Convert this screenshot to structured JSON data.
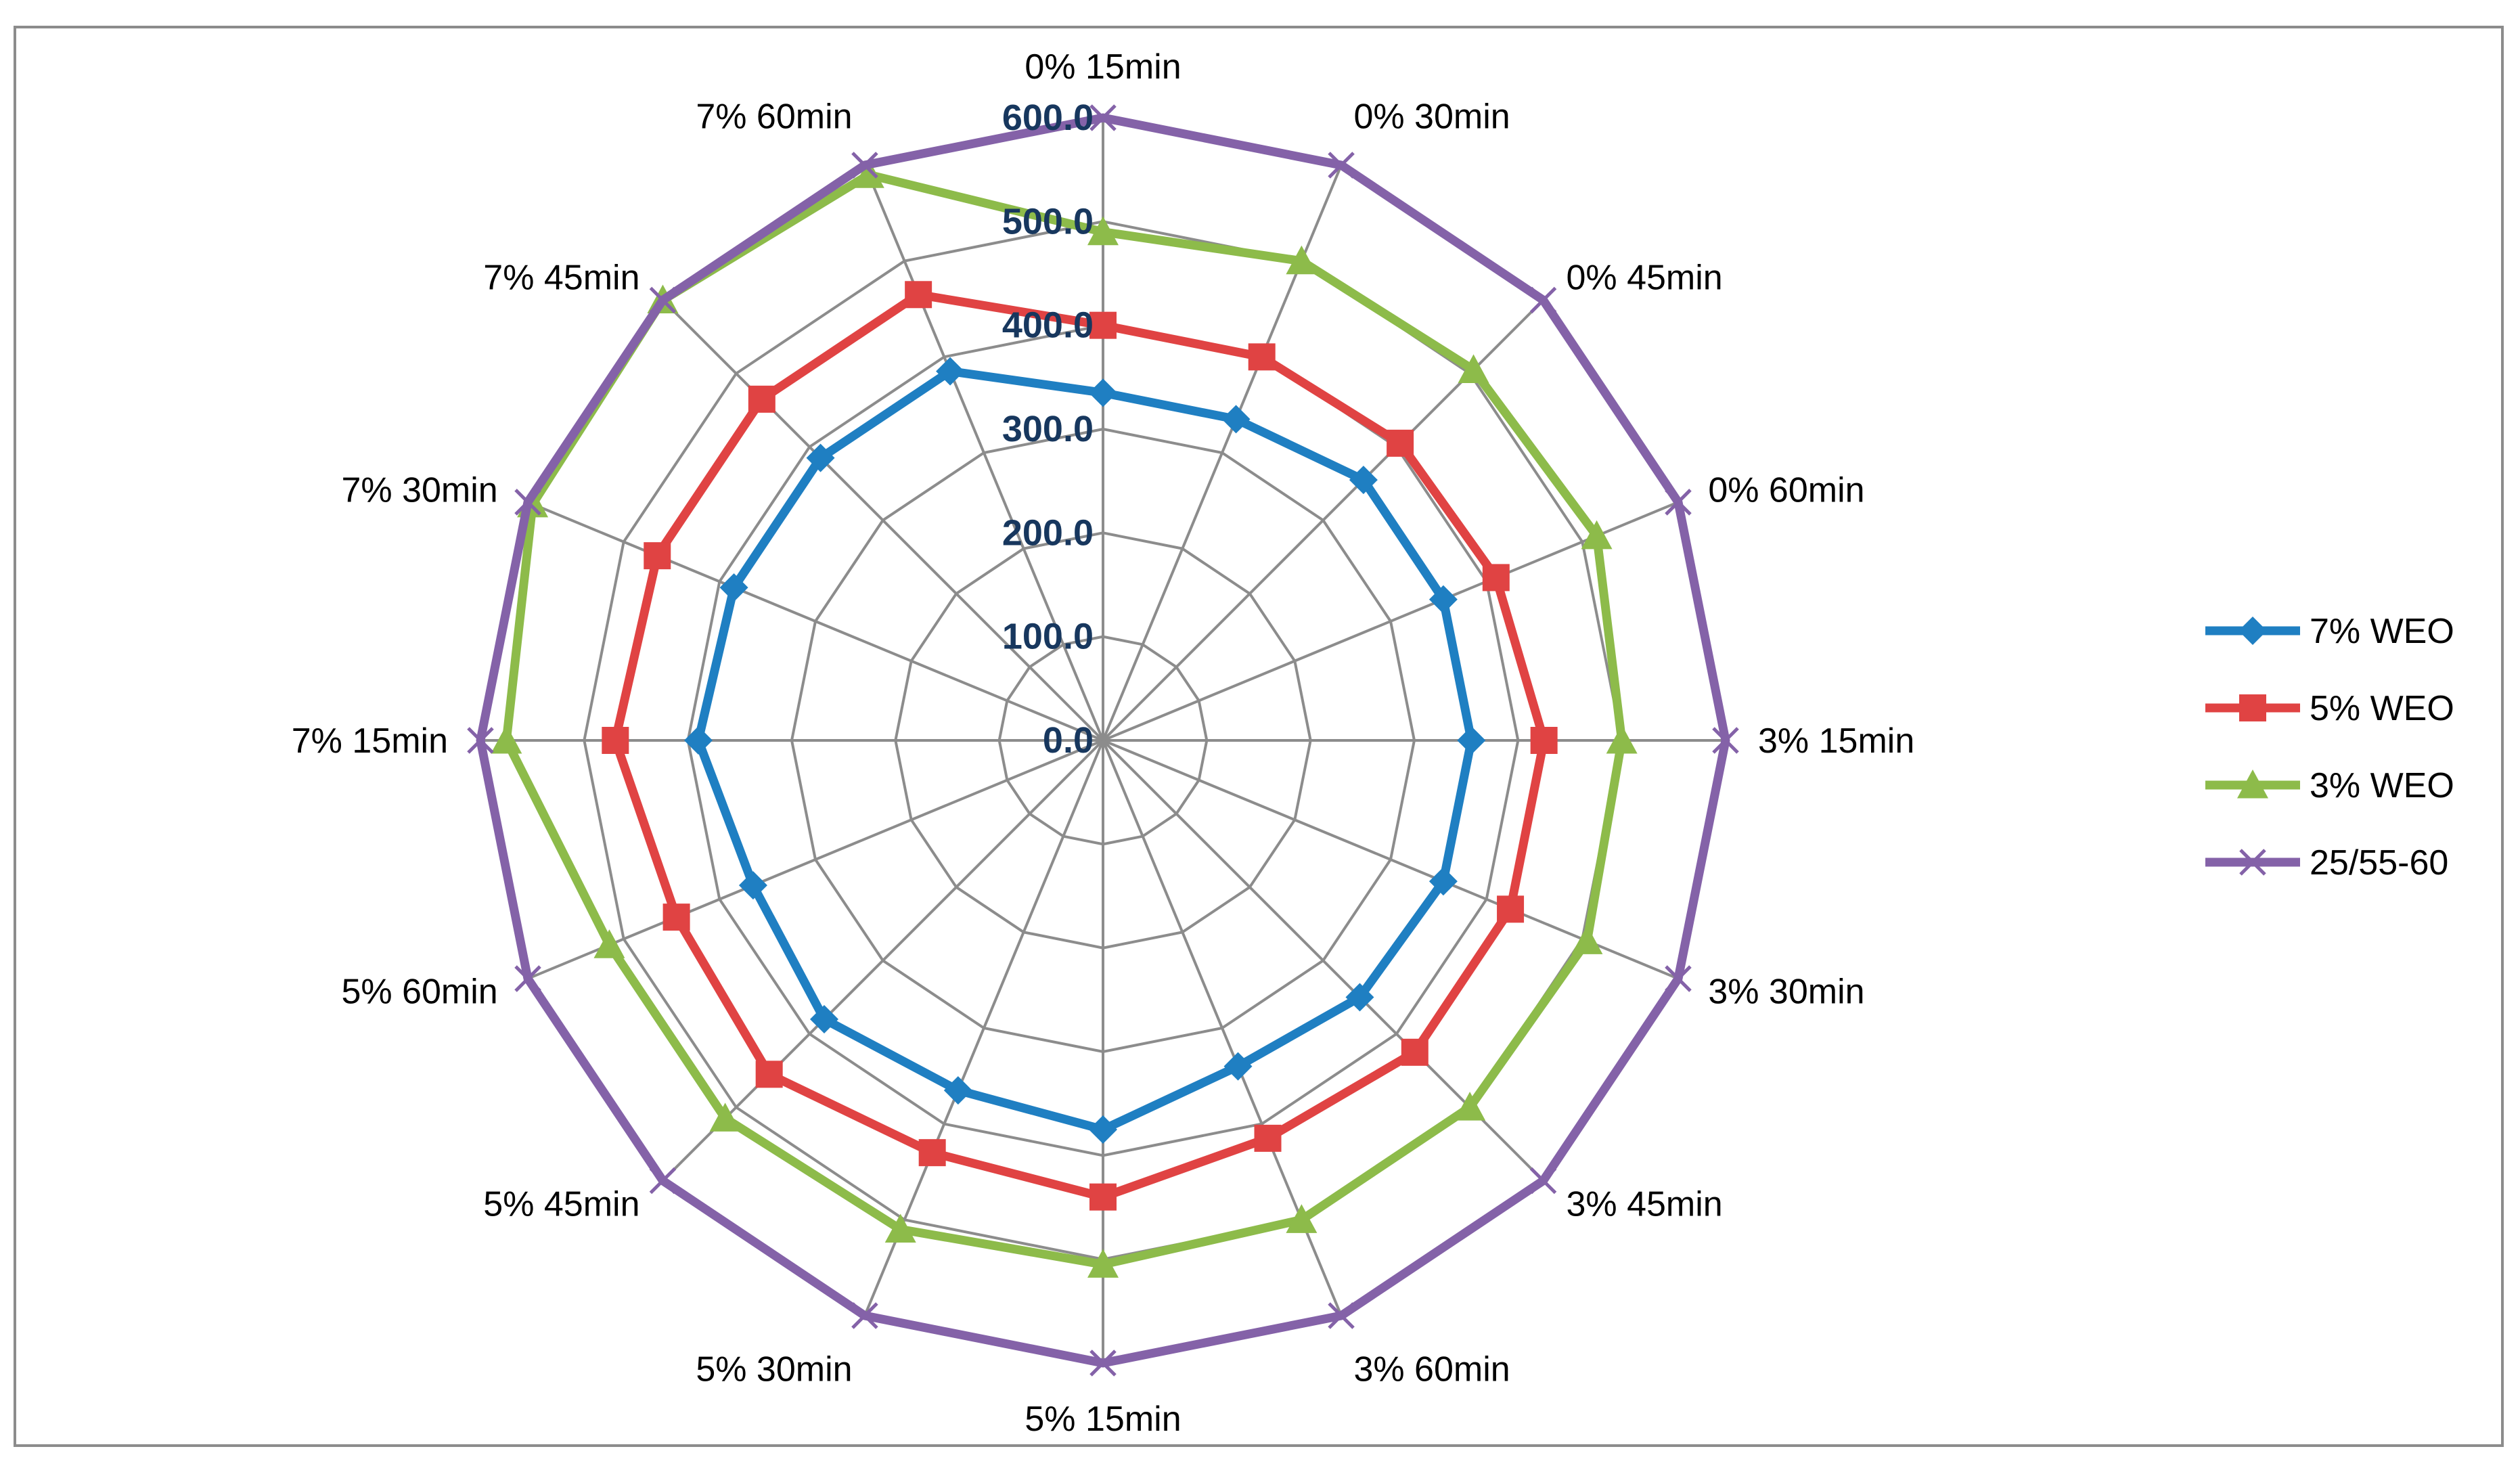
{
  "chart_data": {
    "type": "radar",
    "title": "",
    "categories": [
      "0% 15min",
      "0% 30min",
      "0% 45min",
      "0% 60min",
      "3% 15min",
      "3% 30min",
      "3% 45min",
      "3% 60min",
      "5% 15min",
      "5% 30min",
      "5% 45min",
      "5% 60min",
      "7% 15min",
      "7% 30min",
      "7% 45min",
      "7% 60min"
    ],
    "rlim": [
      0,
      600
    ],
    "ticks": [
      "0.0",
      "100.0",
      "200.0",
      "300.0",
      "400.0",
      "500.0",
      "600.0"
    ],
    "tick_values": [
      0,
      100,
      200,
      300,
      400,
      500,
      600
    ],
    "grid": true,
    "legend_position": "right",
    "series": [
      {
        "name": "7% WEO",
        "color": "#1f7fc2",
        "marker": "diamond",
        "values": [
          335,
          335,
          355,
          355,
          355,
          355,
          350,
          340,
          375,
          365,
          380,
          365,
          390,
          385,
          385,
          385
        ]
      },
      {
        "name": "5% WEO",
        "color": "#e04343",
        "marker": "square",
        "values": [
          400,
          400,
          405,
          410,
          425,
          425,
          425,
          415,
          440,
          430,
          455,
          445,
          470,
          465,
          465,
          465
        ]
      },
      {
        "name": "3% WEO",
        "color": "#8dbb4a",
        "marker": "triangle",
        "values": [
          490,
          500,
          505,
          515,
          500,
          505,
          500,
          500,
          505,
          510,
          515,
          515,
          575,
          595,
          600,
          590
        ]
      },
      {
        "name": "25/55-60",
        "color": "#8462a8",
        "marker": "x",
        "values": [
          600,
          600,
          600,
          600,
          600,
          600,
          600,
          600,
          600,
          600,
          600,
          600,
          600,
          600,
          600,
          600
        ]
      }
    ]
  }
}
